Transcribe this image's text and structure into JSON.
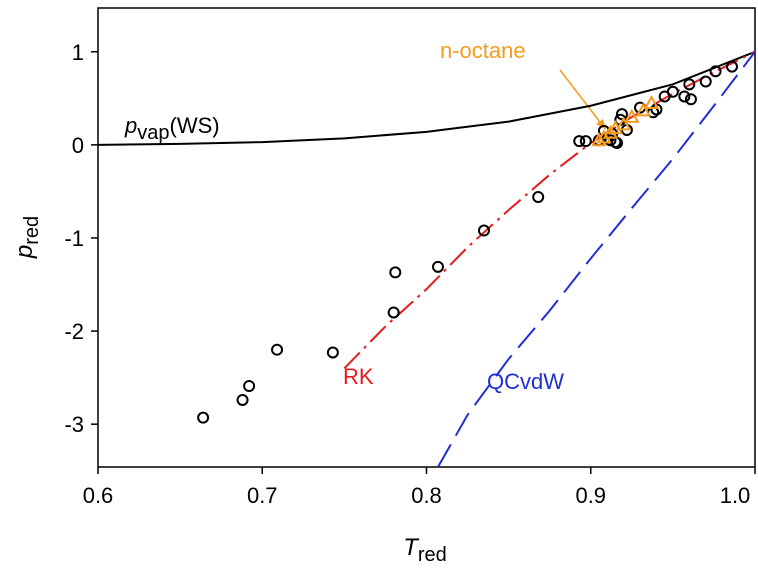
{
  "chart_data": {
    "type": "line",
    "xlabel": {
      "main": "T",
      "sub": "red"
    },
    "ylabel": {
      "main": "p",
      "sub": "red"
    },
    "xlim": [
      0.6,
      1.0
    ],
    "ylim": [
      -3.46,
      1.47
    ],
    "xticks": [
      0.6,
      0.7,
      0.8,
      0.9,
      {
        "value": 1.0,
        "label": "1.0"
      }
    ],
    "yticks": [
      -3,
      -2,
      -1,
      0,
      1
    ],
    "series": [
      {
        "name": {
          "main": "p",
          "sub": "vap",
          "suffix": "(WS)"
        },
        "kind": "line",
        "dash": "solid",
        "color": "#000000",
        "x": [
          0.6,
          0.65,
          0.7,
          0.75,
          0.8,
          0.85,
          0.9,
          0.95,
          1.0
        ],
        "values": [
          0,
          0.01,
          0.03,
          0.07,
          0.14,
          0.25,
          0.42,
          0.65,
          1.0
        ]
      },
      {
        "name": "RK",
        "kind": "line",
        "dash": "dashdot",
        "color": "#e41a1c",
        "x": [
          0.75,
          0.775,
          0.8,
          0.825,
          0.85,
          0.875,
          0.9,
          0.925,
          0.95,
          0.975,
          1.0
        ],
        "values": [
          -2.4,
          -1.95,
          -1.55,
          -1.1,
          -0.7,
          -0.32,
          0.02,
          0.3,
          0.55,
          0.78,
          1.0
        ]
      },
      {
        "name": "QCvdW",
        "kind": "line",
        "dash": "longdash",
        "color": "#1f2fd6",
        "x": [
          0.807,
          0.825,
          0.85,
          0.875,
          0.9,
          0.925,
          0.95,
          0.975,
          1.0
        ],
        "values": [
          -3.46,
          -2.9,
          -2.3,
          -1.78,
          -1.22,
          -0.68,
          -0.15,
          0.42,
          1.0
        ]
      },
      {
        "kind": "circle",
        "color": "#000000",
        "x": [
          0.664,
          0.688,
          0.692,
          0.709,
          0.743,
          0.78,
          0.781,
          0.807,
          0.835,
          0.868,
          0.893,
          0.897,
          0.905,
          0.908,
          0.912,
          0.913,
          0.915,
          0.916,
          0.918,
          0.919,
          0.922,
          0.93,
          0.938,
          0.94,
          0.945,
          0.95,
          0.957,
          0.96,
          0.961,
          0.97,
          0.976,
          0.986
        ],
        "values": [
          -2.93,
          -2.74,
          -2.59,
          -2.2,
          -2.23,
          -1.8,
          -1.37,
          -1.31,
          -0.92,
          -0.56,
          0.04,
          0.04,
          0.05,
          0.15,
          0.05,
          0.12,
          0.03,
          0.02,
          0.27,
          0.33,
          0.16,
          0.4,
          0.35,
          0.38,
          0.52,
          0.57,
          0.52,
          0.65,
          0.49,
          0.68,
          0.79,
          0.84
        ]
      },
      {
        "name": "n-octane",
        "kind": "triangle",
        "color": "#f39c1f",
        "x": [
          0.905,
          0.908,
          0.912,
          0.915,
          0.92,
          0.925,
          0.932,
          0.937
        ],
        "values": [
          0.05,
          0.08,
          0.13,
          0.18,
          0.22,
          0.3,
          0.37,
          0.45
        ]
      }
    ]
  }
}
